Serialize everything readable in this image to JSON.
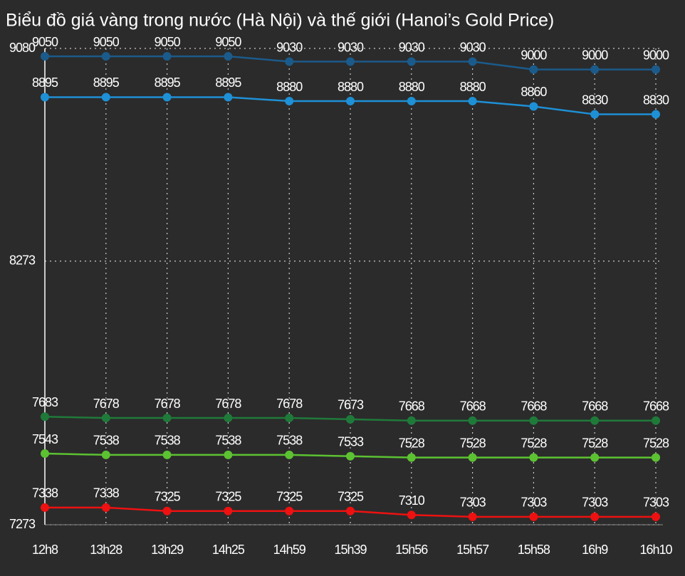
{
  "chart_data": {
    "type": "line",
    "title": "Biểu đồ giá vàng trong nước (Hà Nội) và thế giới (Hanoi’s Gold Price)",
    "categories": [
      "12h8",
      "13h28",
      "13h29",
      "14h25",
      "14h59",
      "15h39",
      "15h56",
      "15h57",
      "15h58",
      "16h9",
      "16h10"
    ],
    "series": [
      {
        "color": "#1b5b8b",
        "values": [
          9050,
          9050,
          9050,
          9050,
          9030,
          9030,
          9030,
          9030,
          9000,
          9000,
          9000
        ]
      },
      {
        "color": "#1e90d6",
        "values": [
          8895,
          8895,
          8895,
          8895,
          8880,
          8880,
          8880,
          8880,
          8860,
          8830,
          8830
        ]
      },
      {
        "color": "#1f7a3a",
        "values": [
          7683,
          7678,
          7678,
          7678,
          7678,
          7673,
          7668,
          7668,
          7668,
          7668,
          7668
        ]
      },
      {
        "color": "#5cc232",
        "values": [
          7543,
          7538,
          7538,
          7538,
          7538,
          7533,
          7528,
          7528,
          7528,
          7528,
          7528
        ]
      },
      {
        "color": "#ee1111",
        "values": [
          7338,
          7338,
          7325,
          7325,
          7325,
          7325,
          7310,
          7303,
          7303,
          7303,
          7303
        ]
      }
    ],
    "ylim": [
      7273,
      9080
    ],
    "yticks": [
      7273,
      8273,
      9080
    ],
    "grid": true,
    "data_labels": true
  }
}
